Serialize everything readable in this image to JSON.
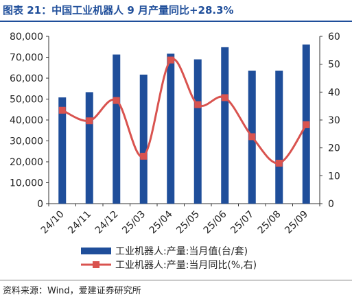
{
  "chart_data": {
    "type": "bar",
    "title": "图表 21：中国工业机器人 9 月产量同比+28.3%",
    "categories": [
      "24/10",
      "24/11",
      "24/12",
      "25/03",
      "25/04",
      "25/05",
      "25/06",
      "25/07",
      "25/08",
      "25/09"
    ],
    "series": [
      {
        "name": "工业机器人:产量:当月值(台/套)",
        "type": "bar",
        "axis": "left",
        "color": "#1f4e9a",
        "values": [
          50800,
          53300,
          71300,
          61700,
          71700,
          69000,
          74800,
          63600,
          63600,
          76100
        ]
      },
      {
        "name": "工业机器人:产量:当月同比(%,右)",
        "type": "line",
        "axis": "right",
        "color": "#d9534f",
        "smooth": true,
        "markers": "square",
        "values": [
          33.5,
          29.7,
          37.0,
          17.0,
          51.5,
          35.5,
          38.0,
          24.0,
          14.5,
          28.3
        ]
      }
    ],
    "y_left": {
      "ylim": [
        0,
        80000
      ],
      "ticks": [
        0,
        10000,
        20000,
        30000,
        40000,
        50000,
        60000,
        70000,
        80000
      ],
      "tick_labels": [
        "0",
        "10,000",
        "20,000",
        "30,000",
        "40,000",
        "50,000",
        "60,000",
        "70,000",
        "80,000"
      ]
    },
    "y_right": {
      "ylim": [
        0,
        60
      ],
      "ticks": [
        0,
        10,
        20,
        30,
        40,
        50,
        60
      ],
      "tick_labels": [
        "0",
        "10",
        "20",
        "30",
        "40",
        "50",
        "60"
      ]
    },
    "xlabel": "",
    "ylabel": "",
    "grid": false,
    "legend_position": "bottom"
  },
  "source": "资料来源：Wind，爱建证券研究所"
}
